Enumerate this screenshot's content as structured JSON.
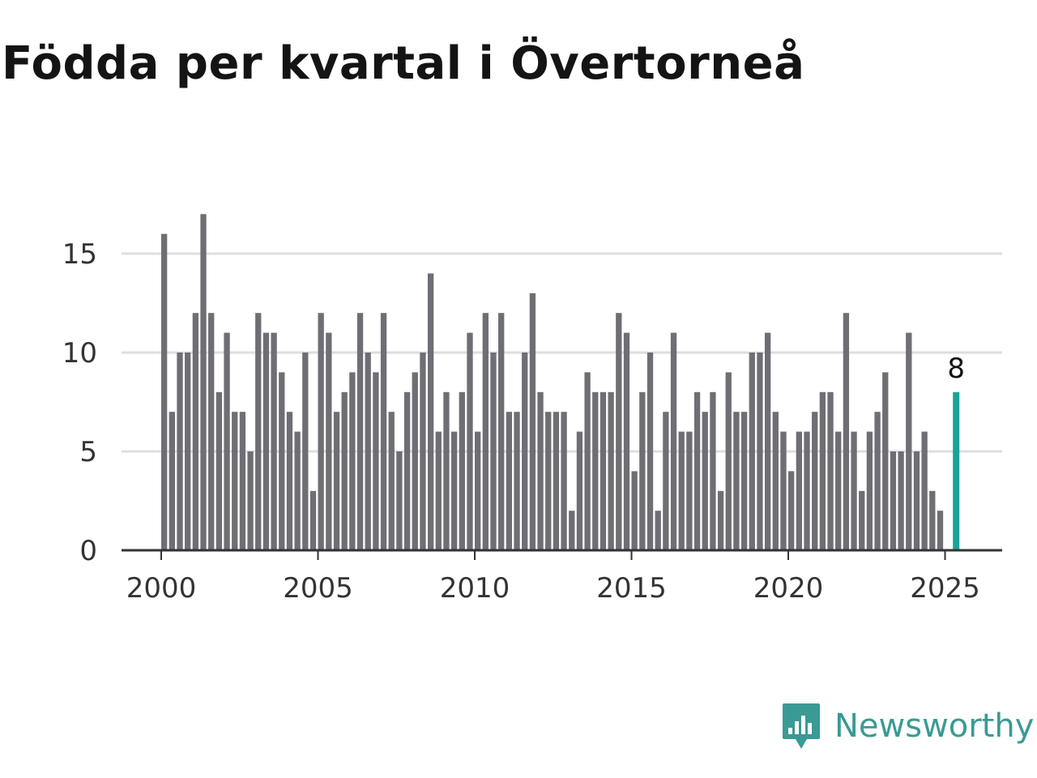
{
  "chart_data": {
    "type": "bar",
    "title": "Födda per kvartal i Övertorneå",
    "xlabel": "",
    "ylabel": "",
    "ylim": [
      0,
      17
    ],
    "yticks": [
      0,
      5,
      10,
      15
    ],
    "xticks": [
      "2000",
      "2005",
      "2010",
      "2015",
      "2020",
      "2025"
    ],
    "grid": true,
    "x_start_year": 2000,
    "values": [
      16,
      7,
      10,
      10,
      12,
      17,
      12,
      8,
      11,
      7,
      7,
      5,
      12,
      11,
      11,
      9,
      7,
      6,
      10,
      3,
      12,
      11,
      7,
      8,
      9,
      12,
      10,
      9,
      12,
      7,
      5,
      8,
      9,
      10,
      14,
      6,
      8,
      6,
      8,
      11,
      6,
      12,
      10,
      12,
      7,
      7,
      10,
      13,
      8,
      7,
      7,
      7,
      2,
      6,
      9,
      8,
      8,
      8,
      12,
      11,
      4,
      8,
      10,
      2,
      7,
      11,
      6,
      6,
      8,
      7,
      8,
      3,
      9,
      7,
      7,
      10,
      10,
      11,
      7,
      6,
      4,
      6,
      6,
      7,
      8,
      8,
      6,
      12,
      6,
      3,
      6,
      7,
      9,
      5,
      5,
      11,
      5,
      6,
      3,
      2,
      0,
      8
    ],
    "highlight": {
      "index": 101,
      "value": 8,
      "label": "8",
      "color": "#1aa39a"
    },
    "bar_color": "#6f6e75",
    "grid_color": "#dedede",
    "axis_color": "#333333"
  },
  "brand": {
    "name": "Newsworthy",
    "icon": "newsworthy-logo-icon",
    "color": "#3a9a94"
  }
}
